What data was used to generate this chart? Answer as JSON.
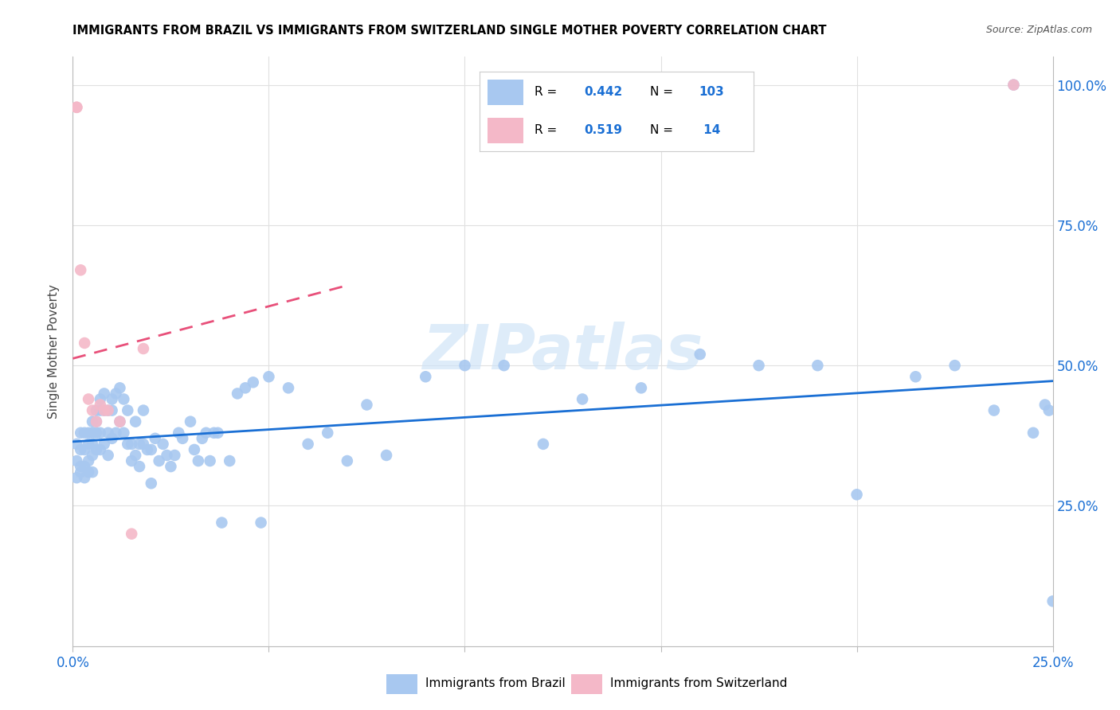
{
  "title": "IMMIGRANTS FROM BRAZIL VS IMMIGRANTS FROM SWITZERLAND SINGLE MOTHER POVERTY CORRELATION CHART",
  "source": "Source: ZipAtlas.com",
  "ylabel": "Single Mother Poverty",
  "xlim": [
    0.0,
    0.25
  ],
  "ylim": [
    0.0,
    1.05
  ],
  "brazil_R": 0.442,
  "brazil_N": 103,
  "switzerland_R": 0.519,
  "switzerland_N": 14,
  "brazil_color": "#a8c8f0",
  "switzerland_color": "#f4b8c8",
  "trendline_brazil_color": "#1a6fd4",
  "trendline_switzerland_color": "#e8507a",
  "legend_text_color": "#1a6fd4",
  "watermark_color": "#d0e4f7",
  "brazil_scatter_x": [
    0.001,
    0.001,
    0.001,
    0.002,
    0.002,
    0.002,
    0.002,
    0.003,
    0.003,
    0.003,
    0.003,
    0.004,
    0.004,
    0.004,
    0.004,
    0.005,
    0.005,
    0.005,
    0.005,
    0.005,
    0.006,
    0.006,
    0.006,
    0.006,
    0.007,
    0.007,
    0.007,
    0.007,
    0.008,
    0.008,
    0.008,
    0.009,
    0.009,
    0.009,
    0.01,
    0.01,
    0.01,
    0.011,
    0.011,
    0.012,
    0.012,
    0.013,
    0.013,
    0.014,
    0.014,
    0.015,
    0.015,
    0.016,
    0.016,
    0.017,
    0.017,
    0.018,
    0.018,
    0.019,
    0.02,
    0.02,
    0.021,
    0.022,
    0.023,
    0.024,
    0.025,
    0.026,
    0.027,
    0.028,
    0.03,
    0.031,
    0.032,
    0.033,
    0.034,
    0.035,
    0.036,
    0.037,
    0.038,
    0.04,
    0.042,
    0.044,
    0.046,
    0.048,
    0.05,
    0.055,
    0.06,
    0.065,
    0.07,
    0.075,
    0.08,
    0.09,
    0.1,
    0.11,
    0.12,
    0.13,
    0.145,
    0.16,
    0.175,
    0.19,
    0.2,
    0.215,
    0.225,
    0.235,
    0.24,
    0.245,
    0.248,
    0.249,
    0.25
  ],
  "brazil_scatter_y": [
    0.33,
    0.36,
    0.3,
    0.35,
    0.32,
    0.38,
    0.31,
    0.38,
    0.35,
    0.3,
    0.32,
    0.38,
    0.36,
    0.33,
    0.31,
    0.4,
    0.38,
    0.36,
    0.34,
    0.31,
    0.42,
    0.4,
    0.38,
    0.35,
    0.44,
    0.42,
    0.38,
    0.35,
    0.45,
    0.42,
    0.36,
    0.42,
    0.38,
    0.34,
    0.44,
    0.42,
    0.37,
    0.45,
    0.38,
    0.46,
    0.4,
    0.44,
    0.38,
    0.42,
    0.36,
    0.36,
    0.33,
    0.4,
    0.34,
    0.36,
    0.32,
    0.42,
    0.36,
    0.35,
    0.35,
    0.29,
    0.37,
    0.33,
    0.36,
    0.34,
    0.32,
    0.34,
    0.38,
    0.37,
    0.4,
    0.35,
    0.33,
    0.37,
    0.38,
    0.33,
    0.38,
    0.38,
    0.22,
    0.33,
    0.45,
    0.46,
    0.47,
    0.22,
    0.48,
    0.46,
    0.36,
    0.38,
    0.33,
    0.43,
    0.34,
    0.48,
    0.5,
    0.5,
    0.36,
    0.44,
    0.46,
    0.52,
    0.5,
    0.5,
    0.27,
    0.48,
    0.5,
    0.42,
    1.0,
    0.38,
    0.43,
    0.42,
    0.08
  ],
  "switzerland_scatter_x": [
    0.001,
    0.001,
    0.002,
    0.003,
    0.004,
    0.005,
    0.006,
    0.007,
    0.008,
    0.009,
    0.012,
    0.015,
    0.018,
    0.24
  ],
  "switzerland_scatter_y": [
    0.96,
    0.96,
    0.67,
    0.54,
    0.44,
    0.42,
    0.4,
    0.43,
    0.42,
    0.42,
    0.4,
    0.2,
    0.53,
    1.0
  ]
}
